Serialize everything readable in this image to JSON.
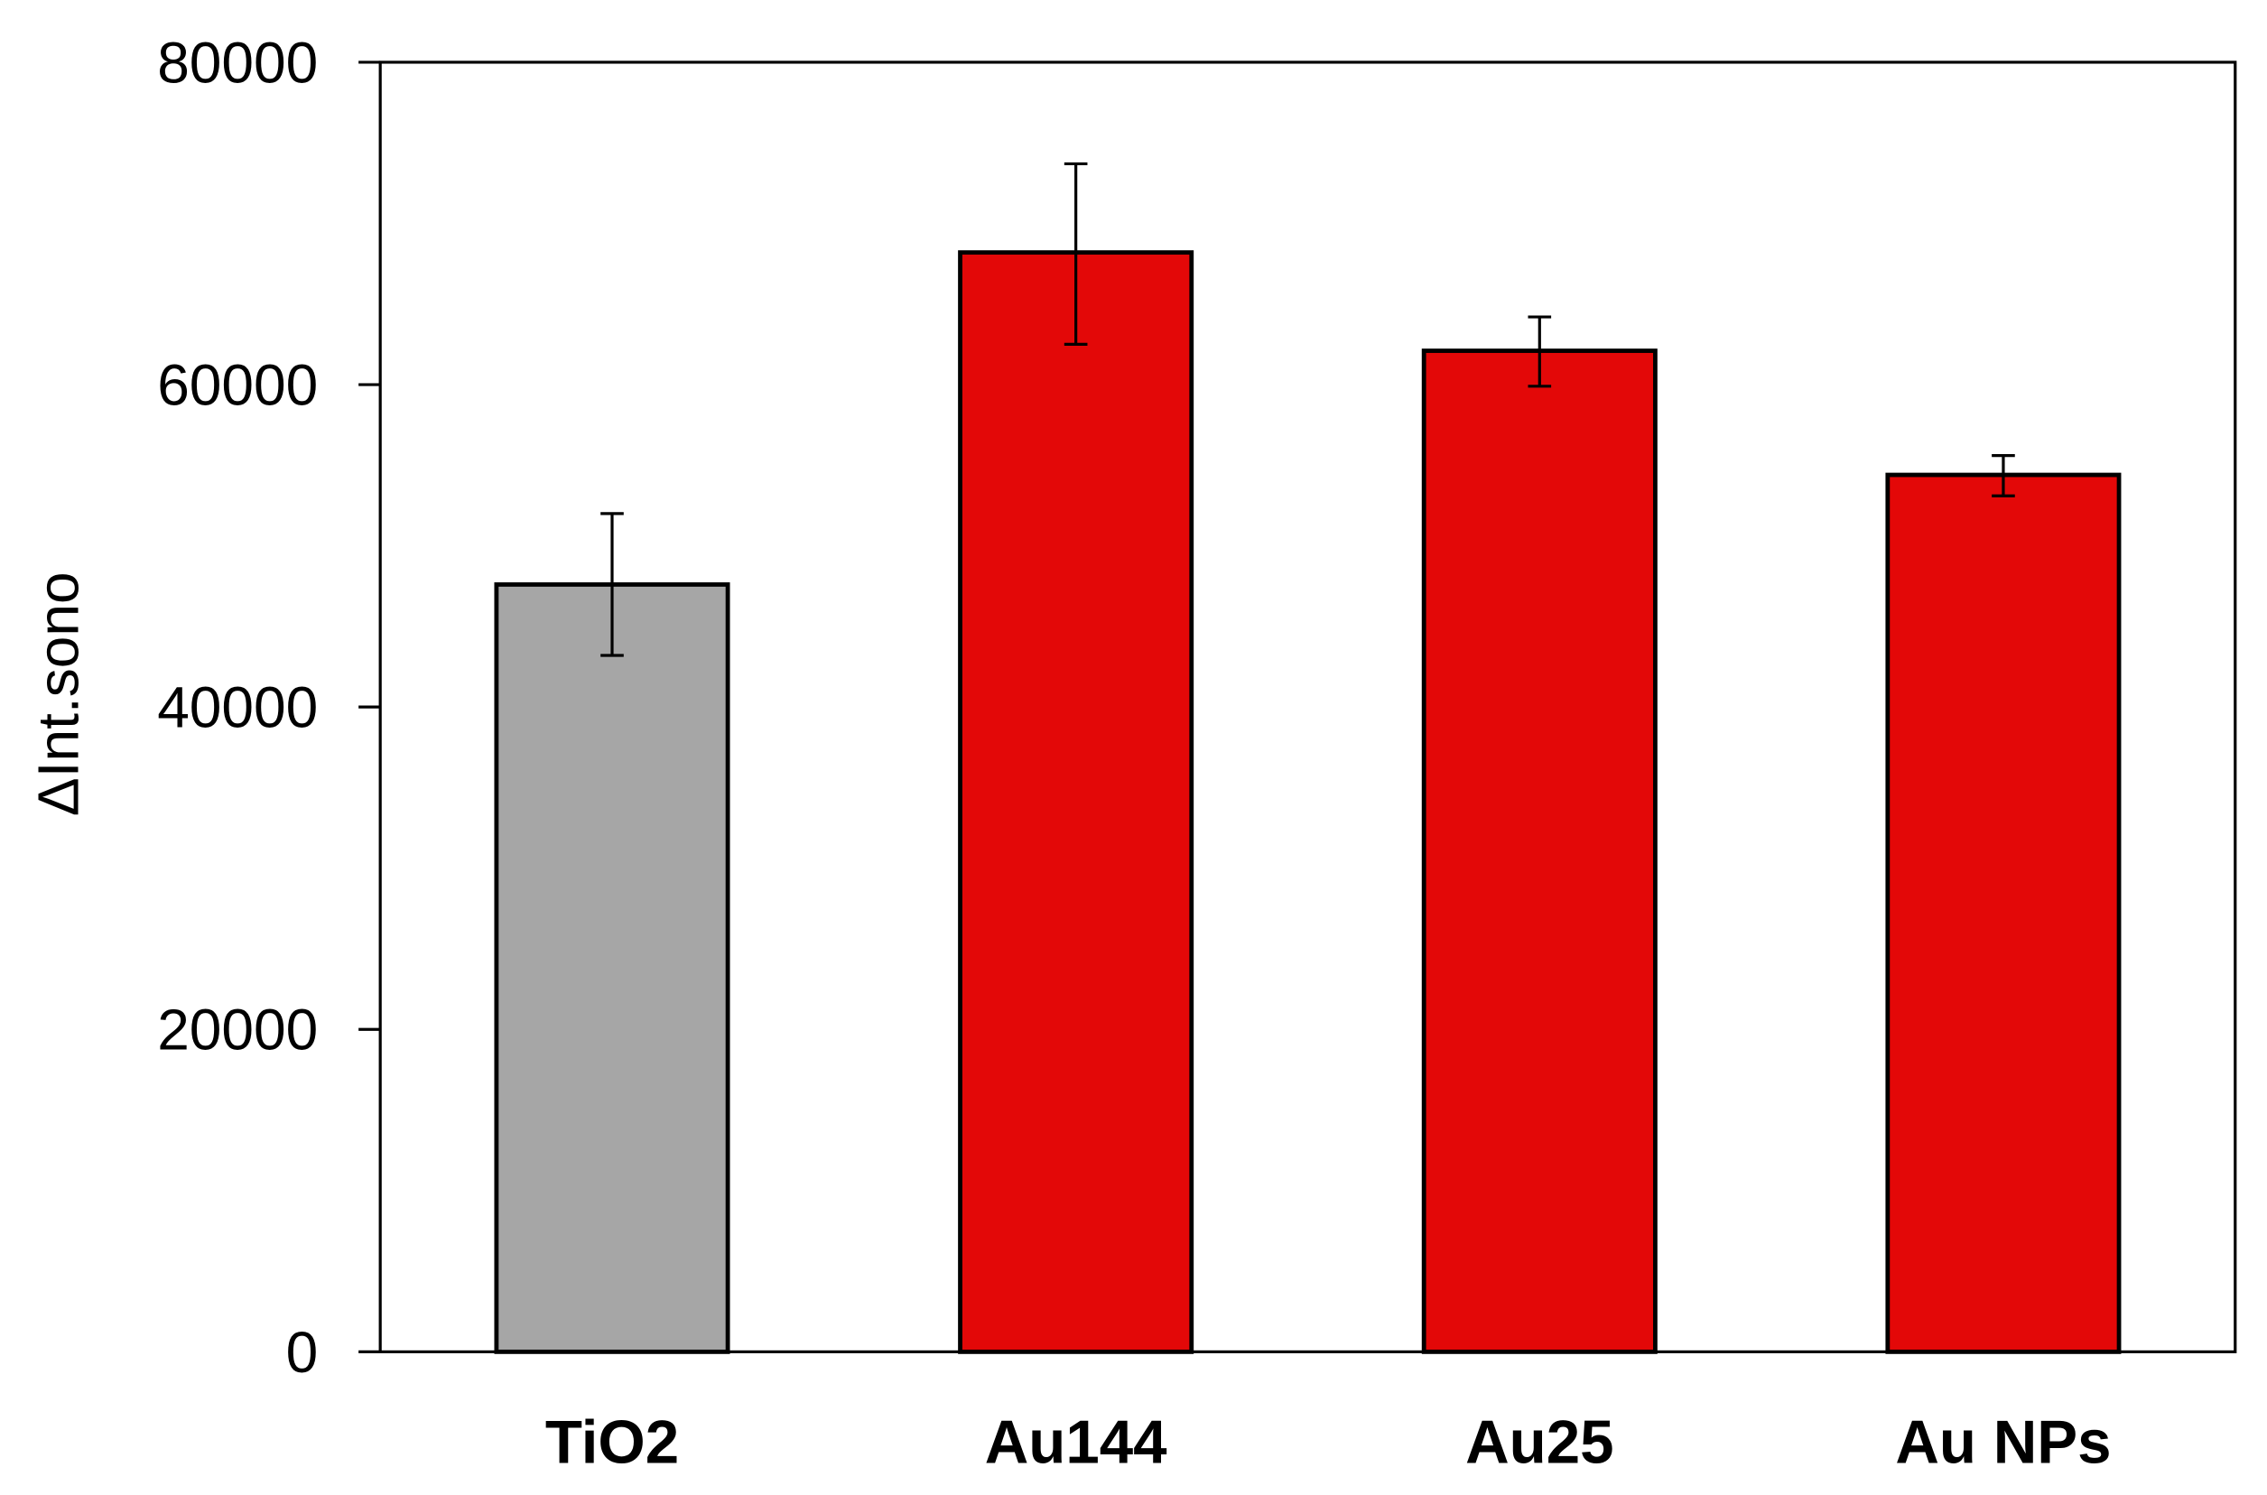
{
  "chart_data": {
    "type": "bar",
    "title": "",
    "xlabel": "",
    "ylabel": "ΔInt.sono",
    "ylim": [
      0,
      80000
    ],
    "yticks": [
      0,
      20000,
      40000,
      60000,
      80000
    ],
    "grid": false,
    "categories": [
      "TiO2",
      "Au144",
      "Au25",
      "Au NPs"
    ],
    "values": [
      47600,
      68200,
      62100,
      54400
    ],
    "error_low": [
      43200,
      62500,
      59900,
      53100
    ],
    "error_high": [
      52000,
      73700,
      64200,
      55600
    ],
    "colors": [
      "#a6a6a6",
      "#e30808",
      "#e30808",
      "#e30808"
    ]
  }
}
